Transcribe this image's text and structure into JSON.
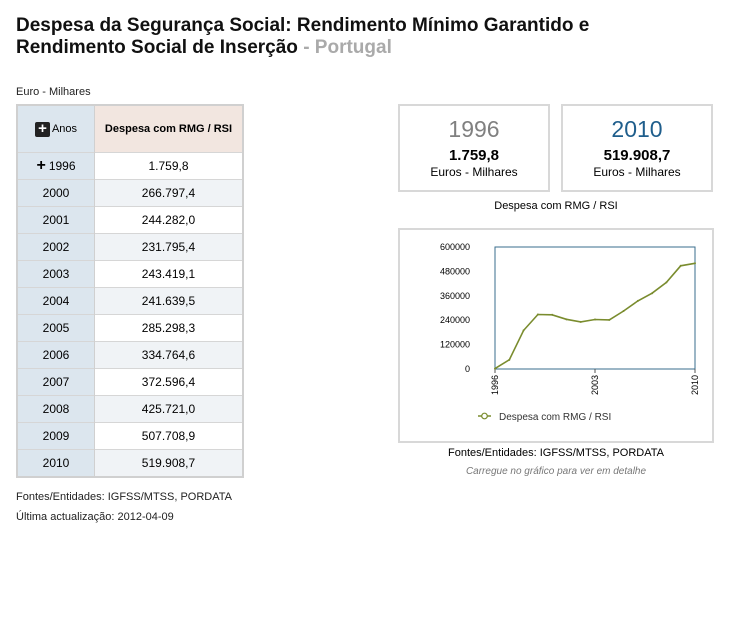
{
  "title": {
    "main": "Despesa da Segurança Social: Rendimento Mínimo Garantido e Rendimento Social de Inserção",
    "sub": " - Portugal"
  },
  "unit": "Euro - Milhares",
  "table": {
    "col_years": "Anos",
    "col_values": "Despesa com RMG / RSI",
    "rows": [
      {
        "year": "1996",
        "value": "1.759,8"
      },
      {
        "year": "2000",
        "value": "266.797,4"
      },
      {
        "year": "2001",
        "value": "244.282,0"
      },
      {
        "year": "2002",
        "value": "231.795,4"
      },
      {
        "year": "2003",
        "value": "243.419,1"
      },
      {
        "year": "2004",
        "value": "241.639,5"
      },
      {
        "year": "2005",
        "value": "285.298,3"
      },
      {
        "year": "2006",
        "value": "334.764,6"
      },
      {
        "year": "2007",
        "value": "372.596,4"
      },
      {
        "year": "2008",
        "value": "425.721,0"
      },
      {
        "year": "2009",
        "value": "507.708,9"
      },
      {
        "year": "2010",
        "value": "519.908,7"
      }
    ]
  },
  "sources": "Fontes/Entidades: IGFSS/MTSS, PORDATA",
  "updated": "Última actualização: 2012-04-09",
  "cards": {
    "left": {
      "year": "1996",
      "value": "1.759,8",
      "unit": "Euros - Milhares"
    },
    "right": {
      "year": "2010",
      "value": "519.908,7",
      "unit": "Euros - Milhares"
    },
    "label": "Despesa com RMG / RSI"
  },
  "chart_sources": "Fontes/Entidades: IGFSS/MTSS, PORDATA",
  "chart_note": "Carregue no gráfico para ver em detalhe",
  "colors": {
    "line": "#7a8c2e",
    "frame": "#3a6e8c",
    "year_right": "#1f5e8c"
  },
  "chart_data": {
    "type": "line",
    "x": [
      1996,
      1997,
      1998,
      1999,
      2000,
      2001,
      2002,
      2003,
      2004,
      2005,
      2006,
      2007,
      2008,
      2009,
      2010
    ],
    "series": [
      {
        "name": "Despesa com RMG / RSI",
        "values": [
          1759.8,
          45000,
          190000,
          268000,
          266797.4,
          244282.0,
          231795.4,
          243419.1,
          241639.5,
          285298.3,
          334764.6,
          372596.4,
          425721.0,
          507708.9,
          519908.7
        ]
      }
    ],
    "yticks": [
      "600000",
      "480000",
      "360000",
      "240000",
      "120000",
      "0"
    ],
    "xticks": [
      "1996",
      "2003",
      "2010"
    ],
    "ylim": [
      0,
      600000
    ],
    "xlim": [
      1996,
      2010
    ],
    "legend": "bottom"
  }
}
